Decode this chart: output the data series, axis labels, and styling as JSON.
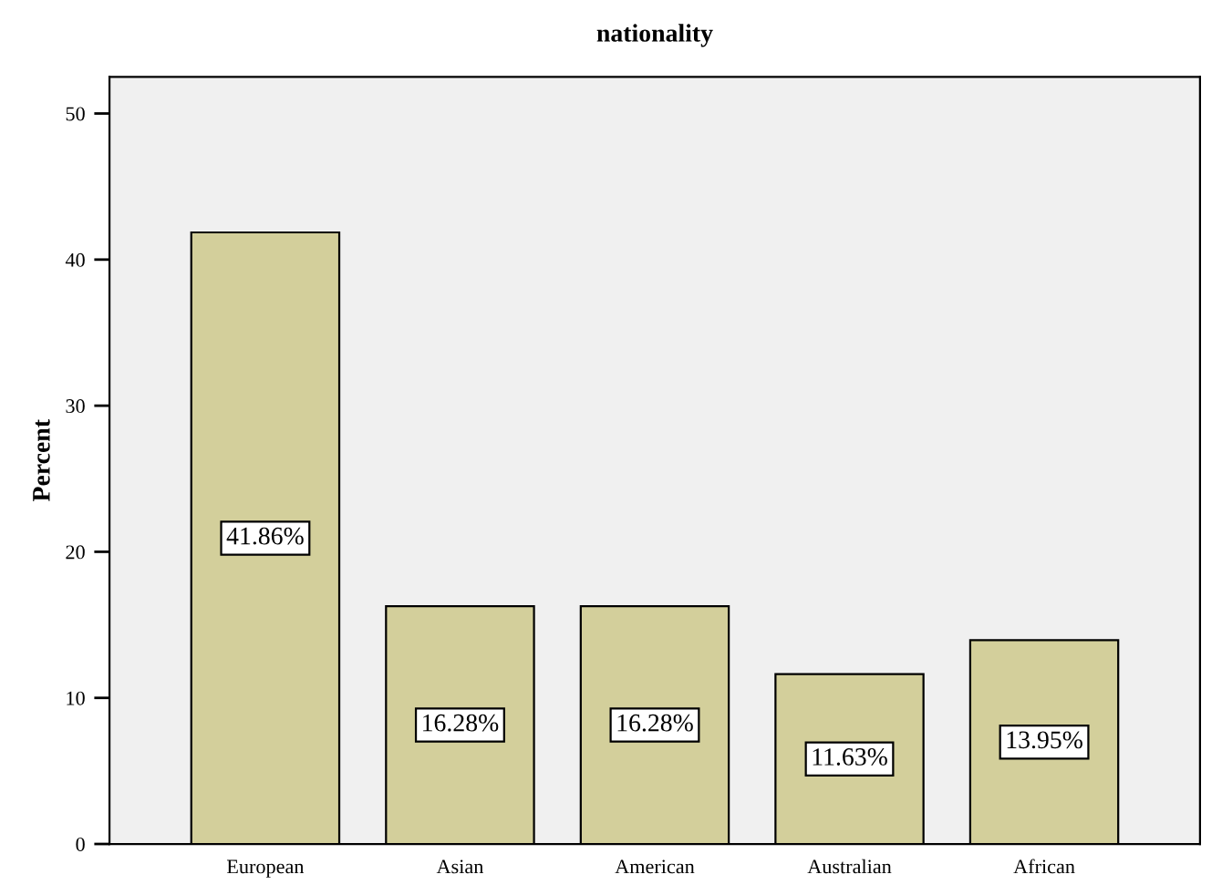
{
  "chart_data": {
    "type": "bar",
    "title": "nationality",
    "ylabel": "Percent",
    "categories": [
      "European",
      "Asian",
      "American",
      "Australian",
      "African"
    ],
    "values": [
      41.86,
      16.28,
      16.28,
      11.63,
      13.95
    ],
    "value_labels": [
      "41.86%",
      "16.28%",
      "16.28%",
      "11.63%",
      "13.95%"
    ],
    "color": "#d3cf9b",
    "ylim": [
      0,
      52.5
    ],
    "yticks": [
      0,
      10,
      20,
      30,
      40,
      50
    ],
    "grid": false
  }
}
